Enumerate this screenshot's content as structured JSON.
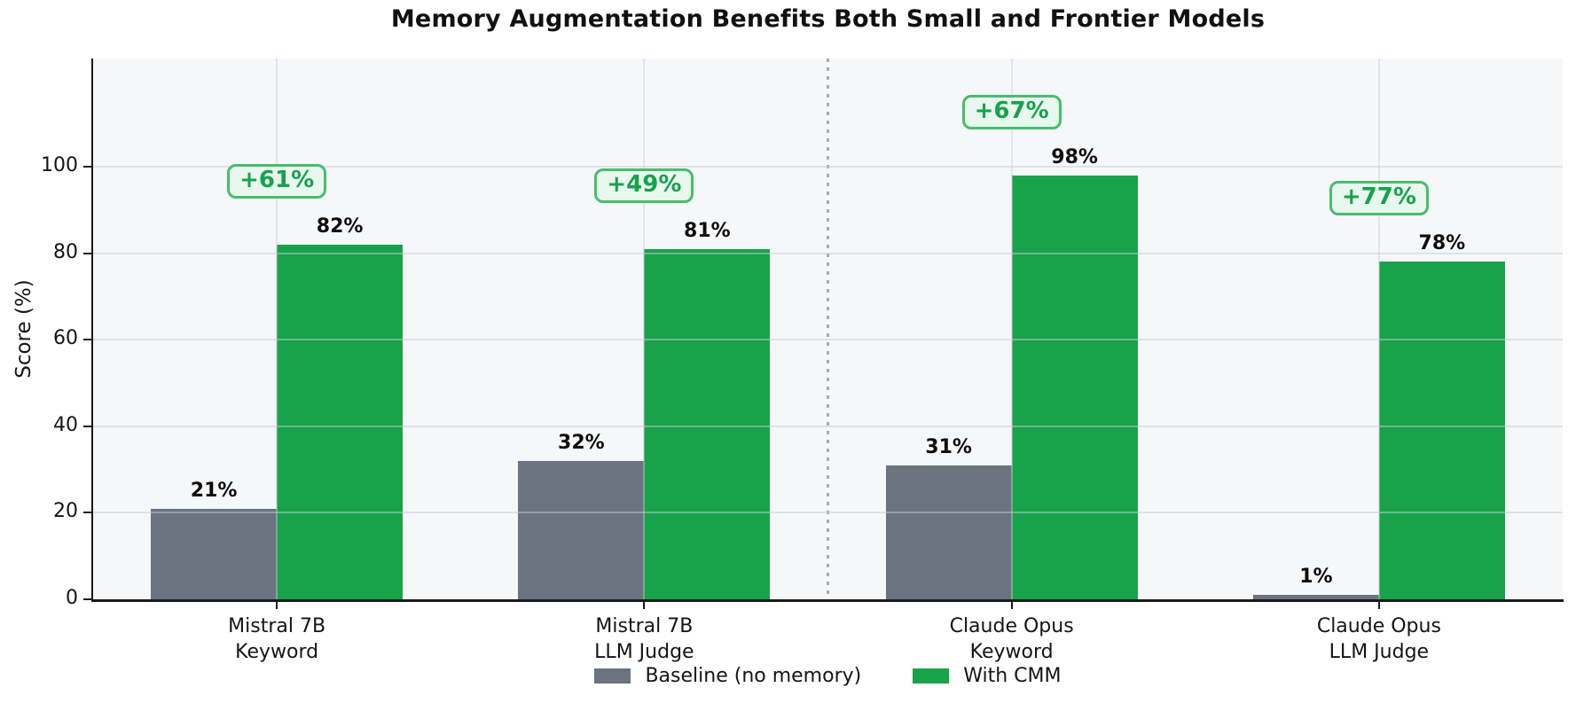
{
  "title": "Memory Augmentation Benefits Both Small and Frontier Models",
  "chart_data": {
    "type": "bar",
    "title": "Memory Augmentation Benefits Both Small and Frontier Models",
    "xlabel": "",
    "ylabel": "Score (%)",
    "categories": [
      [
        "Mistral 7B",
        "Keyword"
      ],
      [
        "Mistral 7B",
        "LLM Judge"
      ],
      [
        "Claude Opus",
        "Keyword"
      ],
      [
        "Claude Opus",
        "LLM Judge"
      ]
    ],
    "series": [
      {
        "name": "Baseline (no memory)",
        "color": "#6b7280",
        "values": [
          21,
          32,
          31,
          1
        ],
        "labels": [
          "21%",
          "32%",
          "31%",
          "1%"
        ]
      },
      {
        "name": "With CMM",
        "color": "#18a34a",
        "values": [
          82,
          81,
          98,
          78
        ],
        "labels": [
          "82%",
          "81%",
          "98%",
          "78%"
        ]
      }
    ],
    "improvement_labels": [
      "+61%",
      "+49%",
      "+67%",
      "+77%"
    ],
    "yticks": [
      0,
      20,
      40,
      60,
      80,
      100
    ],
    "ylim": [
      0,
      125
    ],
    "grid": true,
    "legend_position": "bottom",
    "divider_between_category_indexes": [
      1,
      2
    ],
    "annotation_style": {
      "text_color": "#17a24c",
      "border_color": "#47bd6e",
      "fill_color": "#e9f8ee"
    },
    "plot_background": "#f6f7f9",
    "axis_color": "#1a1a1a"
  }
}
